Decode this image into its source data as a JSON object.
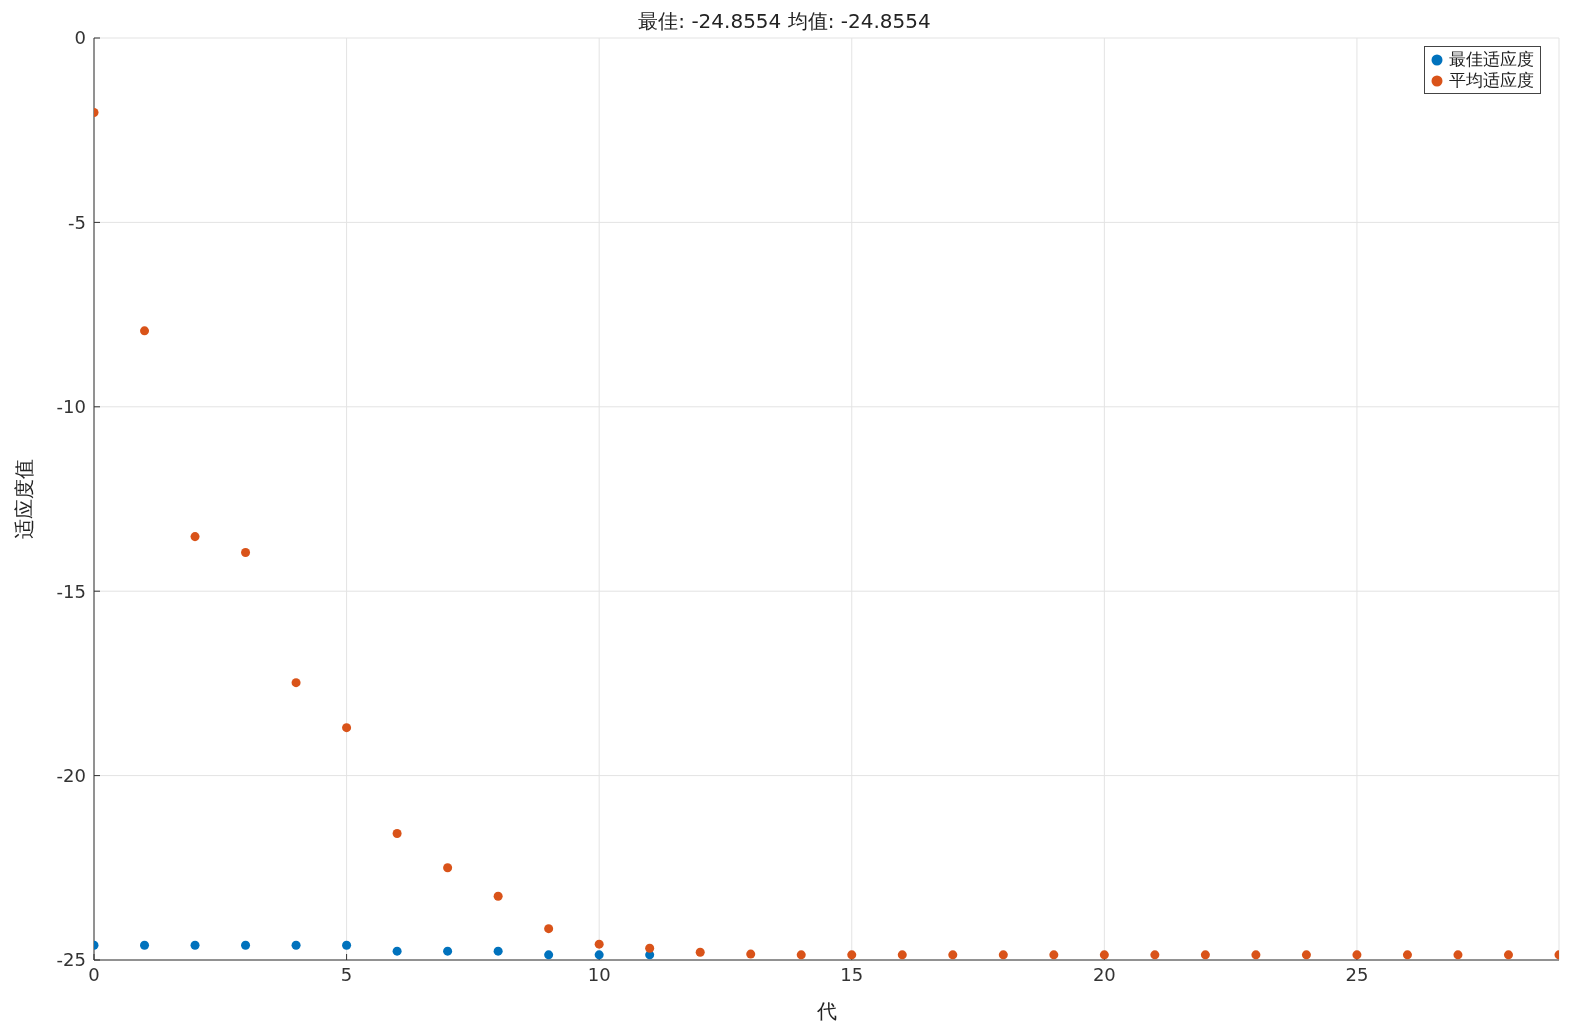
{
  "chart_data": {
    "type": "scatter",
    "title": "最佳: -24.8554 均值: -24.8554",
    "xlabel": "代",
    "ylabel": "适应度值",
    "x": [
      0,
      1,
      2,
      3,
      4,
      5,
      6,
      7,
      8,
      9,
      10,
      11,
      12,
      13,
      14,
      15,
      16,
      17,
      18,
      19,
      20,
      21,
      22,
      23,
      24,
      25,
      26,
      27,
      28,
      29
    ],
    "series": [
      {
        "name": "最佳适应度",
        "color": "#0072bd",
        "values": [
          -24.6,
          -24.6,
          -24.6,
          -24.6,
          -24.6,
          -24.6,
          -24.76,
          -24.76,
          -24.76,
          -24.86,
          -24.86,
          -24.86,
          null,
          null,
          null,
          null,
          null,
          null,
          null,
          null,
          null,
          null,
          null,
          null,
          null,
          null,
          null,
          null,
          null,
          null
        ]
      },
      {
        "name": "平均适应度",
        "color": "#d95319",
        "values": [
          -2.02,
          -7.94,
          -13.52,
          -13.95,
          -17.48,
          -18.7,
          -21.57,
          -22.5,
          -23.27,
          -24.15,
          -24.57,
          -24.68,
          -24.79,
          -24.84,
          -24.86,
          -24.86,
          -24.86,
          -24.86,
          -24.86,
          -24.86,
          -24.86,
          -24.86,
          -24.86,
          -24.86,
          -24.86,
          -24.86,
          -24.86,
          -24.86,
          -24.86,
          -24.86
        ]
      }
    ],
    "xlim": [
      0,
      29
    ],
    "xticks": [
      0,
      5,
      10,
      15,
      20,
      25
    ],
    "ylim": [
      -25,
      0
    ],
    "yticks": [
      -25,
      -20,
      -15,
      -10,
      -5,
      0
    ],
    "grid": true,
    "legend": "top right",
    "marker": "circle"
  }
}
